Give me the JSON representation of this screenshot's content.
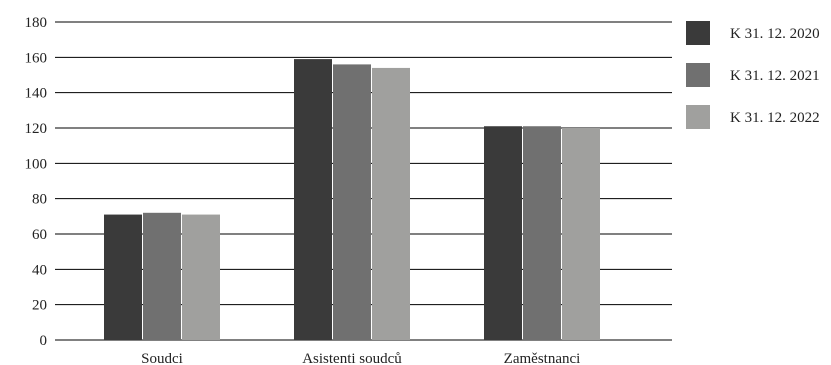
{
  "chart_data": {
    "type": "bar",
    "categories": [
      "Soudci",
      "Asistenti soudců",
      "Zaměstnanci"
    ],
    "series": [
      {
        "name": "K 31. 12. 2020",
        "color": "#3a3a3a",
        "values": [
          71,
          159,
          121
        ]
      },
      {
        "name": "K 31. 12. 2021",
        "color": "#707070",
        "values": [
          72,
          156,
          121
        ]
      },
      {
        "name": "K 31. 12. 2022",
        "color": "#a0a09e",
        "values": [
          71,
          154,
          120
        ]
      }
    ],
    "ylim": [
      0,
      180
    ],
    "yticks": [
      0,
      20,
      40,
      60,
      80,
      100,
      120,
      140,
      160,
      180
    ],
    "grid": true,
    "legend_position": "right"
  }
}
